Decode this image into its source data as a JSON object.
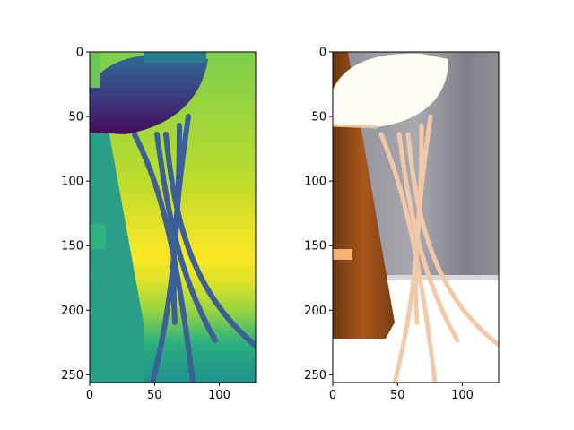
{
  "chart_data": [
    {
      "type": "heatmap",
      "title": "",
      "xlabel": "",
      "ylabel": "",
      "xlim": [
        0,
        128
      ],
      "ylim": [
        256,
        0
      ],
      "x_ticks": [
        0,
        50,
        100
      ],
      "y_ticks": [
        0,
        50,
        100,
        150,
        200,
        250
      ],
      "grid": false,
      "colormap": "viridis",
      "description_colors": {
        "background_gradient": [
          "#7ccf4d",
          "#bfdc2b",
          "#fde725",
          "#9ad640",
          "#2ab07f",
          "#21908d"
        ],
        "table_top": "#4b1a6e",
        "table_legs": "#3c5c96",
        "left_object": "#2a9a86"
      }
    },
    {
      "type": "heatmap",
      "title": "",
      "xlabel": "",
      "ylabel": "",
      "xlim": [
        0,
        128
      ],
      "ylim": [
        256,
        0
      ],
      "x_ticks": [
        0,
        50,
        100
      ],
      "y_ticks": [
        0,
        50,
        100,
        150,
        200,
        250
      ],
      "grid": false,
      "colormap": "rgb",
      "description_colors": {
        "wall": "#a7a7ae",
        "wall_dark": "#7f8088",
        "floor": "#ffffff",
        "wood": "#a0531a",
        "table": "#fffaf0",
        "legs": "#f0c8a8"
      }
    }
  ]
}
